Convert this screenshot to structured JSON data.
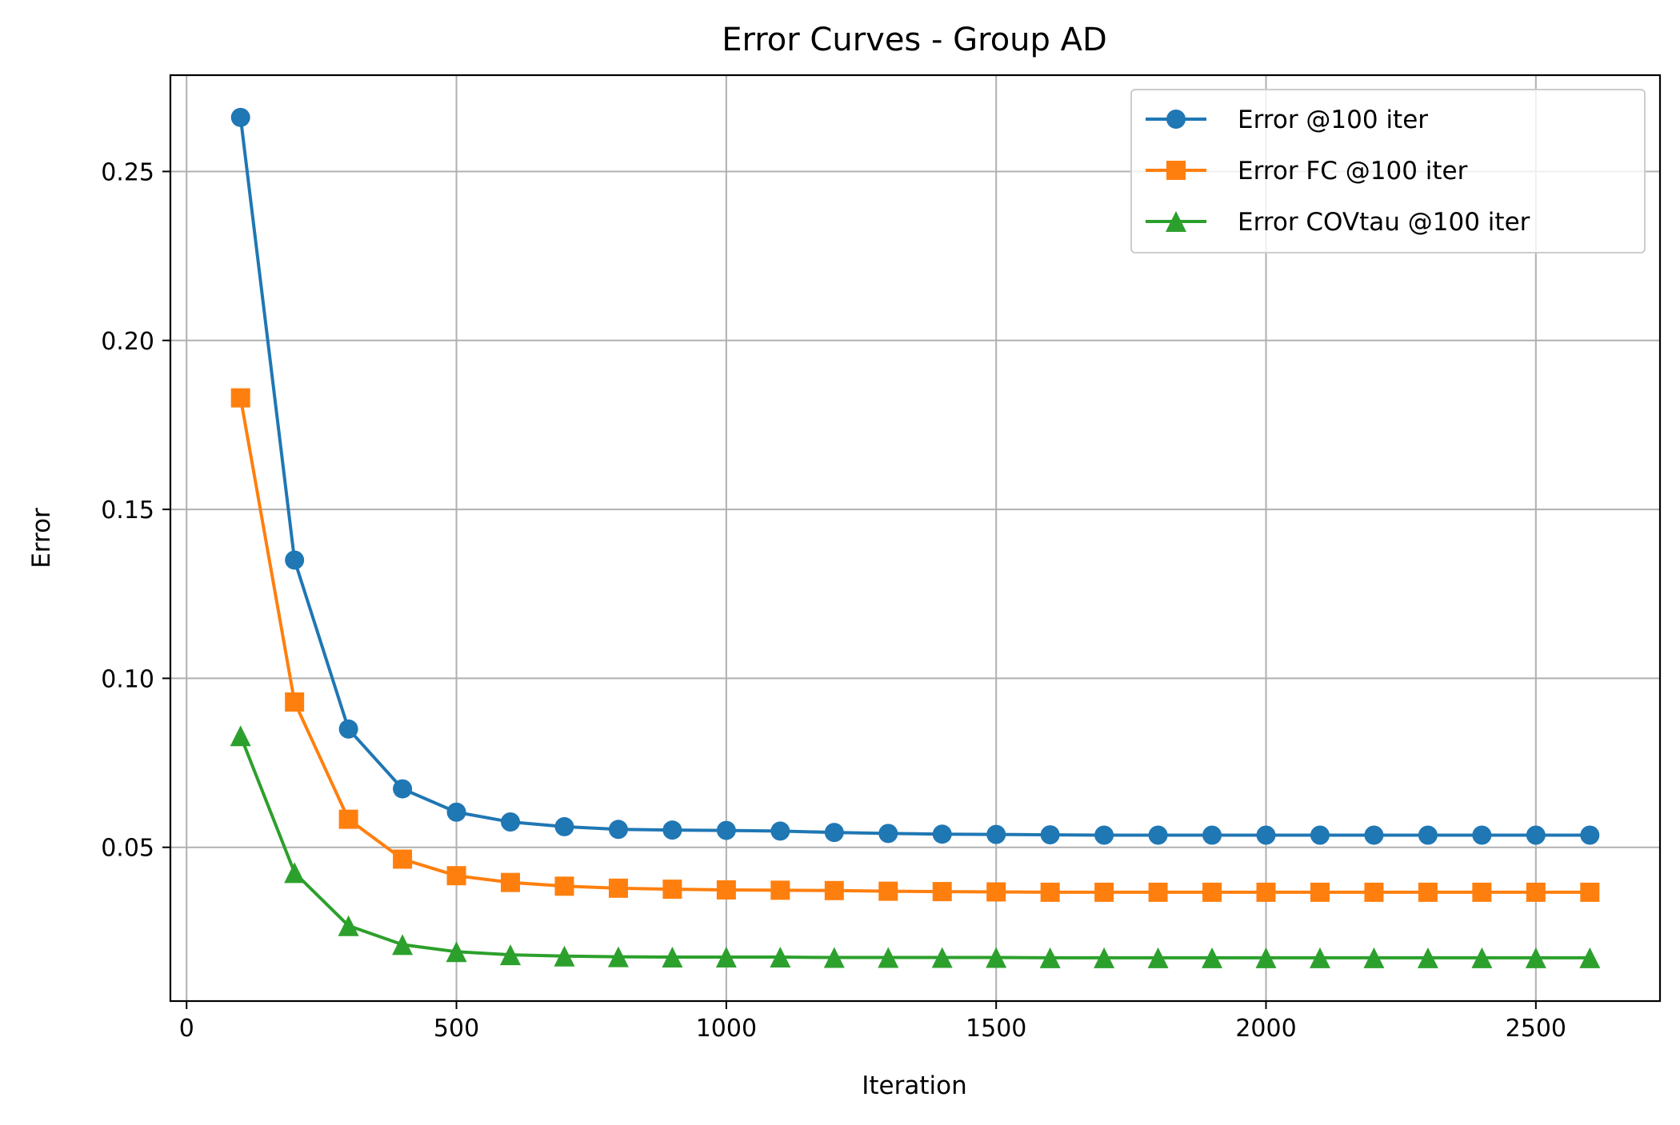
{
  "chart_data": {
    "type": "line",
    "title": "Error Curves - Group AD",
    "xlabel": "Iteration",
    "ylabel": "Error",
    "xlim": [
      -30,
      2730
    ],
    "ylim": [
      0.0045,
      0.2785
    ],
    "xticks": [
      0,
      500,
      1000,
      1500,
      2000,
      2500
    ],
    "xtick_labels": [
      "0",
      "500",
      "1000",
      "1500",
      "2000",
      "2500"
    ],
    "yticks": [
      0.05,
      0.1,
      0.15,
      0.2,
      0.25
    ],
    "ytick_labels": [
      "0.05",
      "0.10",
      "0.15",
      "0.20",
      "0.25"
    ],
    "grid": true,
    "legend_position": "top-right",
    "x": [
      100,
      200,
      300,
      400,
      500,
      600,
      700,
      800,
      900,
      1000,
      1100,
      1200,
      1300,
      1400,
      1500,
      1600,
      1700,
      1800,
      1900,
      2000,
      2100,
      2200,
      2300,
      2400,
      2500,
      2600
    ],
    "series": [
      {
        "name": "Error @100 iter",
        "color": "#1f77b4",
        "marker": "circle",
        "values": [
          0.266,
          0.135,
          0.085,
          0.0673,
          0.0604,
          0.0575,
          0.0561,
          0.0553,
          0.0551,
          0.055,
          0.0548,
          0.0544,
          0.0541,
          0.0539,
          0.0538,
          0.0537,
          0.0536,
          0.0536,
          0.0536,
          0.0536,
          0.0536,
          0.0536,
          0.0536,
          0.0536,
          0.0536,
          0.0536
        ]
      },
      {
        "name": "Error FC @100 iter",
        "color": "#ff7f0e",
        "marker": "square",
        "values": [
          0.183,
          0.093,
          0.0583,
          0.0465,
          0.0416,
          0.0396,
          0.0385,
          0.0379,
          0.0376,
          0.0374,
          0.0373,
          0.0372,
          0.037,
          0.0369,
          0.0368,
          0.0367,
          0.0367,
          0.0367,
          0.0367,
          0.0367,
          0.0367,
          0.0367,
          0.0367,
          0.0367,
          0.0367,
          0.0367
        ]
      },
      {
        "name": "Error COVtau @100 iter",
        "color": "#2ca02c",
        "marker": "triangle",
        "values": [
          0.083,
          0.0425,
          0.0268,
          0.0212,
          0.0191,
          0.0182,
          0.0178,
          0.0176,
          0.0175,
          0.0175,
          0.0175,
          0.0174,
          0.0174,
          0.0174,
          0.0174,
          0.0173,
          0.0173,
          0.0173,
          0.0173,
          0.0173,
          0.0173,
          0.0173,
          0.0173,
          0.0173,
          0.0173,
          0.0173
        ]
      }
    ]
  }
}
